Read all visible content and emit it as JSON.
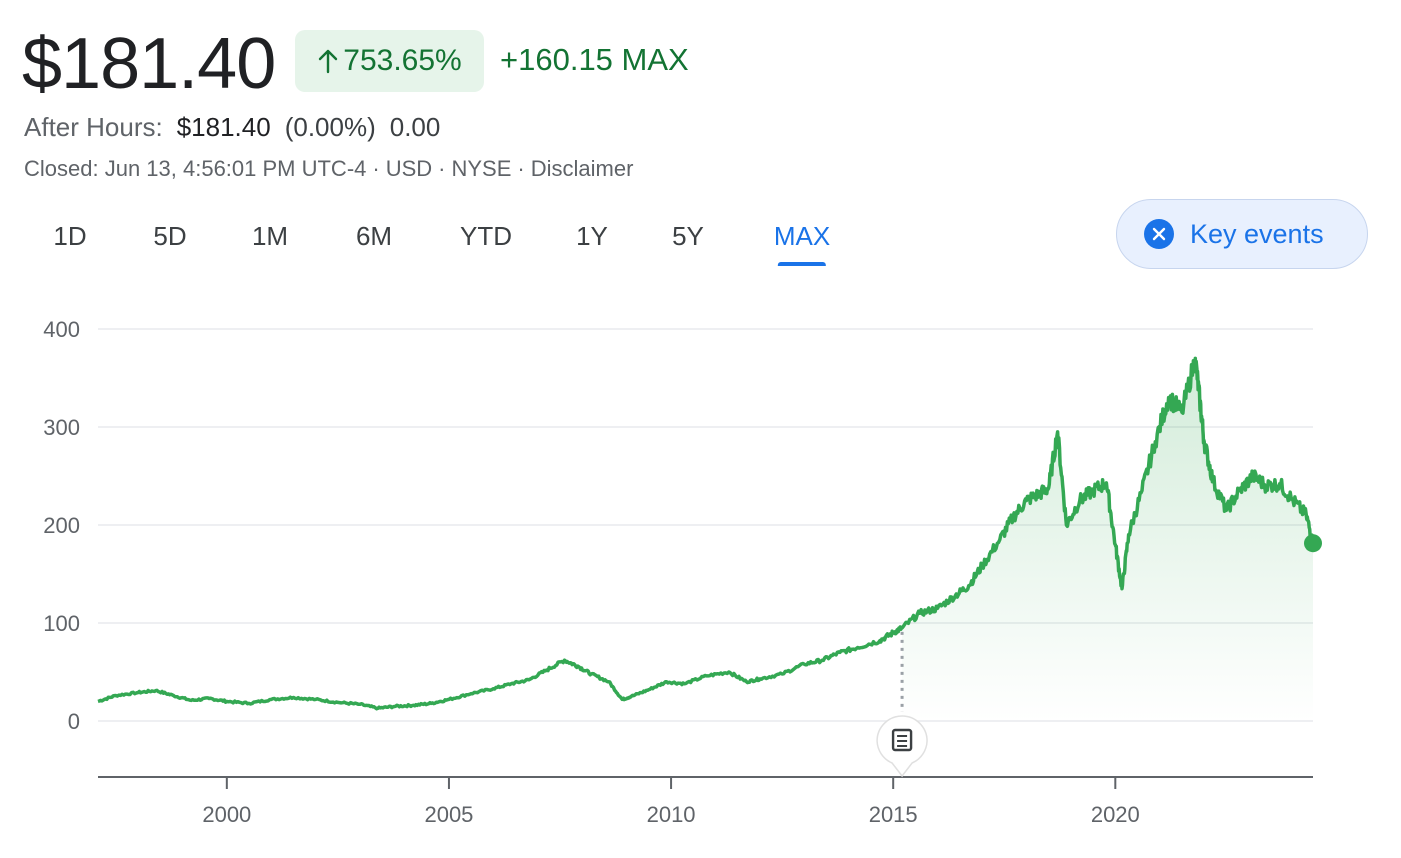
{
  "header": {
    "price": "$181.40",
    "change_percent": "753.65%",
    "change_value": "+160.15 MAX",
    "arrow_icon": "arrow-up-icon",
    "positive_color": "#137333"
  },
  "after_hours": {
    "label": "After Hours:",
    "price": "$181.40",
    "percent": "(0.00%)",
    "change": "0.00"
  },
  "meta": {
    "closed": "Closed: Jun 13, 4:56:01 PM UTC-4",
    "currency": "USD",
    "exchange": "NYSE",
    "disclaimer": "Disclaimer",
    "separator": "·"
  },
  "tabs": [
    {
      "label": "1D"
    },
    {
      "label": "5D"
    },
    {
      "label": "1M"
    },
    {
      "label": "6M"
    },
    {
      "label": "YTD"
    },
    {
      "label": "1Y"
    },
    {
      "label": "5Y"
    },
    {
      "label": "MAX",
      "active": true
    }
  ],
  "key_events": {
    "label": "Key events",
    "icon": "close-circle-icon",
    "accent": "#1a73e8"
  },
  "chart_data": {
    "type": "area",
    "title": "",
    "xlabel": "",
    "ylabel": "",
    "x_ticks": [
      "2000",
      "2005",
      "2010",
      "2015",
      "2020"
    ],
    "y_ticks": [
      0,
      100,
      200,
      300,
      400
    ],
    "xlim": [
      1997.1,
      2024.45
    ],
    "ylim": [
      -57,
      400
    ],
    "line_color": "#34a853",
    "event_marker": {
      "x": 2015.2,
      "icon": "document-icon"
    },
    "last_point": {
      "x": 2024.45,
      "y": 181.4
    },
    "series": [
      {
        "x": [
          1997.1,
          1997.5,
          1998.0,
          1998.4,
          1998.8,
          1999.2,
          1999.6,
          2000.0,
          2000.5,
          2001.0,
          2001.5,
          2002.0,
          2002.5,
          2003.0,
          2003.4,
          2003.8,
          2004.2,
          2004.6,
          2005.0,
          2005.5,
          2006.0,
          2006.4,
          2006.8,
          2007.2,
          2007.6,
          2007.9,
          2008.2,
          2008.6,
          2008.9,
          2009.1,
          2009.5,
          2009.9,
          2010.3,
          2010.8,
          2011.3,
          2011.7,
          2012.0,
          2012.5,
          2013.0,
          2013.4,
          2013.8,
          2014.2,
          2014.7,
          2015.0,
          2015.2,
          2015.6,
          2016.0,
          2016.4,
          2016.7,
          2017.0,
          2017.4,
          2017.7,
          2018.0,
          2018.3,
          2018.5,
          2018.7,
          2018.9,
          2019.2,
          2019.5,
          2019.8,
          2020.0,
          2020.15,
          2020.3,
          2020.6,
          2020.9,
          2021.2,
          2021.5,
          2021.8,
          2021.9,
          2022.0,
          2022.2,
          2022.5,
          2022.8,
          2023.1,
          2023.4,
          2023.7,
          2024.0,
          2024.3,
          2024.45
        ],
        "y": [
          20,
          26,
          29,
          31,
          26,
          21,
          23,
          20,
          18,
          22,
          24,
          22,
          19,
          17,
          13,
          15,
          16,
          18,
          22,
          28,
          33,
          38,
          42,
          52,
          62,
          56,
          48,
          40,
          22,
          25,
          32,
          40,
          38,
          46,
          50,
          40,
          43,
          48,
          58,
          62,
          70,
          75,
          82,
          90,
          95,
          110,
          115,
          128,
          138,
          158,
          185,
          208,
          225,
          232,
          238,
          295,
          200,
          225,
          235,
          243,
          180,
          135,
          190,
          235,
          285,
          330,
          315,
          370,
          328,
          285,
          245,
          215,
          235,
          250,
          240,
          242,
          225,
          210,
          181.4
        ]
      }
    ]
  }
}
